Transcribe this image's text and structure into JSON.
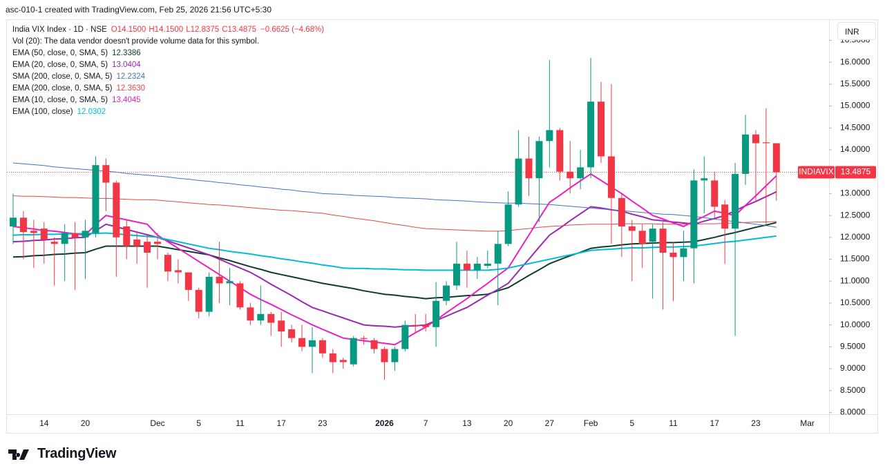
{
  "header": "asc-010-1 created with TradingView.com, Feb 25, 2026 21:56 UTC+5:30",
  "footer": "TradingView",
  "chart_data": {
    "type": "candlestick",
    "title": "India VIX Index · 1D · NSE",
    "ohlc_labels": [
      "O14.1500",
      "H14.1500",
      "L12.8375",
      "C13.4875"
    ],
    "change_label": "−0.6625 (−4.68%)",
    "volume_note": "Vol (20): The data vendor doesn't provide volume data for this symbol.",
    "symbol_tag": "INDIAVIX",
    "last_price": {
      "value": 13.4875,
      "label": "13.4875"
    },
    "currency": "INR",
    "up_color": "#089981",
    "down_color": "#f23645",
    "categories": [
      null,
      null,
      null,
      "14",
      null,
      null,
      null,
      "20",
      null,
      null,
      null,
      null,
      null,
      null,
      "Dec",
      null,
      null,
      null,
      "5",
      null,
      null,
      null,
      "11",
      null,
      null,
      null,
      "17",
      null,
      null,
      null,
      "23",
      null,
      null,
      null,
      null,
      null,
      "2026",
      null,
      null,
      null,
      "7",
      null,
      null,
      null,
      "13",
      null,
      null,
      null,
      "20",
      null,
      null,
      null,
      "27",
      null,
      null,
      null,
      "Feb",
      null,
      null,
      null,
      "5",
      null,
      null,
      null,
      "11",
      null,
      null,
      null,
      "17",
      null,
      null,
      null,
      "23",
      null,
      null,
      null,
      null,
      "Mar"
    ],
    "open": [
      12.25,
      12.45,
      12.15,
      12.2,
      11.9,
      11.85,
      12.1,
      12.0,
      12.1,
      13.65,
      13.25,
      12.25,
      11.95,
      11.9,
      11.9,
      11.6,
      11.25,
      11.2,
      10.8,
      10.3,
      11.1,
      10.95,
      10.95,
      10.4,
      10.1,
      10.25,
      10.1,
      9.9,
      9.7,
      9.5,
      9.65,
      9.35,
      9.2,
      9.1,
      9.7,
      9.65,
      9.45,
      9.15,
      9.45,
      10.0,
      10.0,
      9.95,
      10.55,
      10.9,
      11.4,
      11.25,
      11.35,
      11.4,
      11.85,
      12.75,
      13.8,
      13.35,
      14.2,
      14.45,
      13.5,
      13.35,
      13.6,
      15.1,
      13.85,
      12.9,
      12.25,
      12.15,
      11.9,
      12.2,
      11.65,
      11.55,
      11.75,
      13.3,
      13.3,
      12.75,
      12.2,
      13.45,
      14.35,
      14.17,
      14.15,
      null,
      null,
      null
    ],
    "high": [
      13.0,
      12.6,
      12.4,
      12.35,
      12.0,
      12.3,
      12.35,
      12.4,
      13.85,
      13.8,
      13.3,
      12.4,
      12.1,
      12.05,
      12.1,
      11.65,
      11.5,
      11.2,
      10.85,
      11.2,
      11.9,
      11.3,
      11.0,
      10.5,
      10.9,
      10.3,
      10.3,
      10.0,
      10.0,
      9.95,
      9.7,
      9.45,
      9.25,
      9.75,
      9.75,
      9.7,
      9.5,
      9.5,
      10.1,
      10.25,
      10.25,
      10.98,
      11.0,
      11.9,
      11.7,
      11.55,
      11.7,
      12.15,
      13.05,
      14.45,
      14.3,
      14.3,
      16.05,
      14.5,
      14.2,
      14.0,
      16.1,
      15.55,
      15.5,
      13.0,
      12.4,
      12.3,
      12.3,
      12.35,
      11.9,
      12.15,
      13.55,
      13.85,
      13.5,
      12.85,
      13.7,
      14.8,
      14.45,
      14.95,
      14.15,
      null,
      null,
      null
    ],
    "low": [
      11.85,
      11.5,
      11.3,
      11.4,
      10.9,
      11.0,
      10.8,
      11.05,
      12.0,
      12.6,
      11.1,
      11.5,
      11.4,
      10.85,
      11.5,
      11.0,
      10.95,
      10.55,
      10.15,
      10.2,
      10.5,
      10.45,
      10.35,
      10.0,
      10.0,
      9.75,
      9.5,
      9.6,
      9.4,
      8.9,
      9.25,
      8.9,
      9.0,
      9.05,
      9.55,
      9.35,
      8.75,
      8.95,
      9.4,
      9.8,
      9.85,
      9.5,
      10.45,
      10.8,
      10.85,
      11.05,
      11.3,
      10.45,
      11.8,
      12.7,
      12.95,
      12.35,
      13.6,
      13.3,
      13.0,
      13.1,
      13.35,
      13.7,
      11.85,
      11.55,
      11.0,
      11.3,
      10.6,
      10.35,
      10.55,
      11.0,
      10.95,
      12.55,
      12.45,
      11.4,
      9.75,
      13.2,
      12.8,
      12.3,
      12.8375,
      null,
      null,
      null
    ],
    "close": [
      12.45,
      12.12,
      12.1,
      11.95,
      11.85,
      12.1,
      12.0,
      12.15,
      13.65,
      13.25,
      12.0,
      11.8,
      11.8,
      11.65,
      11.85,
      11.22,
      11.2,
      10.8,
      10.3,
      11.1,
      10.95,
      11.0,
      10.4,
      10.1,
      10.25,
      10.05,
      9.85,
      9.7,
      9.5,
      9.65,
      9.35,
      9.15,
      9.15,
      9.7,
      9.68,
      9.45,
      9.15,
      9.45,
      10.0,
      9.98,
      9.95,
      10.55,
      10.9,
      11.4,
      11.25,
      11.4,
      11.4,
      11.85,
      12.75,
      13.8,
      13.35,
      14.2,
      14.45,
      13.5,
      13.35,
      13.6,
      15.1,
      13.85,
      12.9,
      12.25,
      12.15,
      11.85,
      12.2,
      11.65,
      11.55,
      11.75,
      13.3,
      13.35,
      12.7,
      12.2,
      13.45,
      14.35,
      14.15,
      14.15,
      13.4875,
      null,
      null,
      null
    ],
    "series": [
      {
        "name": "EMA (50, close, 0, SMA, 5)",
        "legend_value": "12.3386",
        "color": "#0e3b2e",
        "values": [
          11.55,
          11.56,
          11.58,
          11.59,
          11.61,
          11.62,
          11.64,
          11.65,
          11.73,
          11.8,
          11.8,
          11.8,
          11.8,
          11.8,
          11.8,
          11.76,
          11.72,
          11.68,
          11.64,
          11.6,
          11.53,
          11.47,
          11.4,
          11.33,
          11.27,
          11.2,
          11.15,
          11.1,
          11.05,
          11.0,
          10.95,
          10.91,
          10.87,
          10.83,
          10.78,
          10.74,
          10.7,
          10.68,
          10.65,
          10.63,
          10.6,
          10.62,
          10.63,
          10.65,
          10.67,
          10.68,
          10.7,
          10.78,
          10.85,
          10.99,
          11.13,
          11.26,
          11.4,
          11.49,
          11.58,
          11.66,
          11.75,
          11.78,
          11.8,
          11.83,
          11.85,
          11.86,
          11.87,
          11.88,
          11.88,
          11.89,
          11.9,
          11.95,
          12.0,
          12.06,
          12.11,
          12.17,
          12.23,
          12.28,
          12.3386,
          null,
          null,
          null
        ]
      },
      {
        "name": "EMA (20, close, 0, SMA, 5)",
        "legend_value": "13.0404",
        "color": "#9c27b0",
        "values": [
          11.9,
          11.91,
          11.93,
          11.94,
          11.96,
          11.97,
          11.99,
          12.0,
          12.15,
          12.3,
          12.24,
          12.18,
          12.12,
          12.06,
          12.0,
          11.92,
          11.84,
          11.76,
          11.68,
          11.6,
          11.5,
          11.4,
          11.3,
          11.2,
          11.07,
          10.93,
          10.8,
          10.67,
          10.53,
          10.4,
          10.32,
          10.24,
          10.16,
          10.08,
          10.0,
          9.98,
          9.97,
          9.95,
          9.97,
          9.98,
          10.0,
          10.1,
          10.2,
          10.3,
          10.4,
          10.54,
          10.68,
          10.81,
          10.95,
          11.23,
          11.5,
          11.78,
          12.05,
          12.21,
          12.38,
          12.54,
          12.7,
          12.67,
          12.63,
          12.6,
          12.53,
          12.47,
          12.4,
          12.38,
          12.35,
          12.33,
          12.3,
          12.37,
          12.43,
          12.5,
          12.61,
          12.72,
          12.82,
          12.93,
          13.0404,
          null,
          null,
          null
        ]
      },
      {
        "name": "SMA (200, close, 0, SMA, 5)",
        "legend_value": "12.2324",
        "color": "#4a6fc4",
        "values": [
          13.7,
          13.68,
          13.66,
          13.64,
          13.61,
          13.59,
          13.57,
          13.55,
          13.53,
          13.51,
          13.49,
          13.46,
          13.44,
          13.42,
          13.4,
          13.38,
          13.35,
          13.33,
          13.3,
          13.28,
          13.25,
          13.23,
          13.2,
          13.18,
          13.15,
          13.13,
          13.1,
          13.08,
          13.05,
          13.03,
          13.0,
          12.99,
          12.98,
          12.96,
          12.95,
          12.94,
          12.93,
          12.91,
          12.9,
          12.89,
          12.88,
          12.86,
          12.85,
          12.84,
          12.83,
          12.81,
          12.8,
          12.79,
          12.78,
          12.78,
          12.77,
          12.76,
          12.75,
          12.73,
          12.71,
          12.69,
          12.67,
          12.65,
          12.63,
          12.61,
          12.59,
          12.57,
          12.55,
          12.53,
          12.52,
          12.5,
          12.48,
          12.45,
          12.42,
          12.39,
          12.36,
          12.33,
          12.3,
          12.27,
          12.2324,
          null,
          null,
          null
        ]
      },
      {
        "name": "EMA (200, close, 0, SMA, 5)",
        "legend_value": "12.3630",
        "color": "#e04848",
        "values": [
          12.95,
          12.94,
          12.94,
          12.93,
          12.92,
          12.91,
          12.91,
          12.9,
          12.89,
          12.89,
          12.88,
          12.87,
          12.86,
          12.86,
          12.85,
          12.83,
          12.81,
          12.79,
          12.77,
          12.75,
          12.74,
          12.72,
          12.7,
          12.68,
          12.66,
          12.64,
          12.62,
          12.61,
          12.59,
          12.57,
          12.55,
          12.51,
          12.48,
          12.44,
          12.41,
          12.38,
          12.34,
          12.3,
          12.27,
          12.23,
          12.2,
          12.19,
          12.18,
          12.17,
          12.16,
          12.15,
          12.14,
          12.14,
          12.15,
          12.18,
          12.2,
          12.23,
          12.25,
          12.26,
          12.28,
          12.29,
          12.3,
          12.3,
          12.3,
          12.31,
          12.31,
          12.31,
          12.31,
          12.3,
          12.3,
          12.3,
          12.3,
          12.31,
          12.31,
          12.32,
          12.33,
          12.34,
          12.35,
          12.35,
          12.363,
          null,
          null,
          null
        ]
      },
      {
        "name": "EMA (10, close, 0, SMA, 5)",
        "legend_value": "13.4045",
        "color": "#e91ec4",
        "values": [
          12.25,
          12.22,
          12.19,
          12.16,
          12.14,
          12.11,
          12.08,
          12.05,
          12.3,
          12.5,
          12.45,
          12.4,
          12.35,
          12.3,
          12.05,
          11.9,
          11.75,
          11.6,
          11.45,
          11.3,
          11.15,
          11.0,
          10.85,
          10.7,
          10.58,
          10.47,
          10.35,
          10.23,
          10.12,
          10.0,
          9.9,
          9.8,
          9.7,
          9.67,
          9.64,
          9.61,
          9.58,
          9.55,
          9.68,
          9.82,
          9.95,
          10.11,
          10.28,
          10.44,
          10.6,
          10.78,
          10.95,
          11.13,
          11.3,
          11.68,
          12.05,
          12.43,
          12.8,
          12.96,
          13.13,
          13.29,
          13.45,
          13.3,
          13.15,
          13.0,
          12.83,
          12.67,
          12.5,
          12.42,
          12.33,
          12.25,
          12.37,
          12.48,
          12.6,
          12.55,
          12.5,
          12.73,
          12.95,
          13.18,
          13.4045,
          null,
          null,
          null
        ]
      },
      {
        "name": "EMA (100, close)",
        "legend_value": "12.0302",
        "color": "#00bcd4",
        "values": [
          12.05,
          12.06,
          12.06,
          12.07,
          12.07,
          12.08,
          12.08,
          12.09,
          12.09,
          12.1,
          12.08,
          12.06,
          12.04,
          12.02,
          12.0,
          11.95,
          11.9,
          11.85,
          11.8,
          11.75,
          11.72,
          11.68,
          11.65,
          11.62,
          11.58,
          11.55,
          11.51,
          11.48,
          11.44,
          11.41,
          11.37,
          11.34,
          11.3,
          11.29,
          11.29,
          11.28,
          11.28,
          11.27,
          11.26,
          11.26,
          11.25,
          11.25,
          11.25,
          11.25,
          11.25,
          11.25,
          11.25,
          11.27,
          11.3,
          11.35,
          11.4,
          11.45,
          11.5,
          11.55,
          11.6,
          11.65,
          11.7,
          11.72,
          11.73,
          11.75,
          11.76,
          11.76,
          11.77,
          11.78,
          11.78,
          11.79,
          11.8,
          11.83,
          11.86,
          11.89,
          11.91,
          11.94,
          11.97,
          12.0,
          12.0302,
          null,
          null,
          null
        ]
      }
    ],
    "ylim": [
      7.96,
      16.98
    ],
    "yticks": [
      {
        "value": 8,
        "label": "8.0000"
      },
      {
        "value": 8.5,
        "label": "8.5000"
      },
      {
        "value": 9,
        "label": "9.0000"
      },
      {
        "value": 9.5,
        "label": "9.5000"
      },
      {
        "value": 10,
        "label": "10.0000"
      },
      {
        "value": 10.5,
        "label": "10.5000"
      },
      {
        "value": 11,
        "label": "11.0000"
      },
      {
        "value": 11.5,
        "label": "11.5000"
      },
      {
        "value": 12,
        "label": "12.0000"
      },
      {
        "value": 12.5,
        "label": "12.5000"
      },
      {
        "value": 13,
        "label": "13.0000"
      },
      {
        "value": 13.5,
        "label": "13.5000"
      },
      {
        "value": 14,
        "label": "14.0000"
      },
      {
        "value": 14.5,
        "label": "14.5000"
      },
      {
        "value": 15,
        "label": "15.0000"
      },
      {
        "value": 15.5,
        "label": "15.5000"
      },
      {
        "value": 16,
        "label": "16.0000"
      },
      {
        "value": 16.5,
        "label": "16.5000"
      }
    ]
  }
}
